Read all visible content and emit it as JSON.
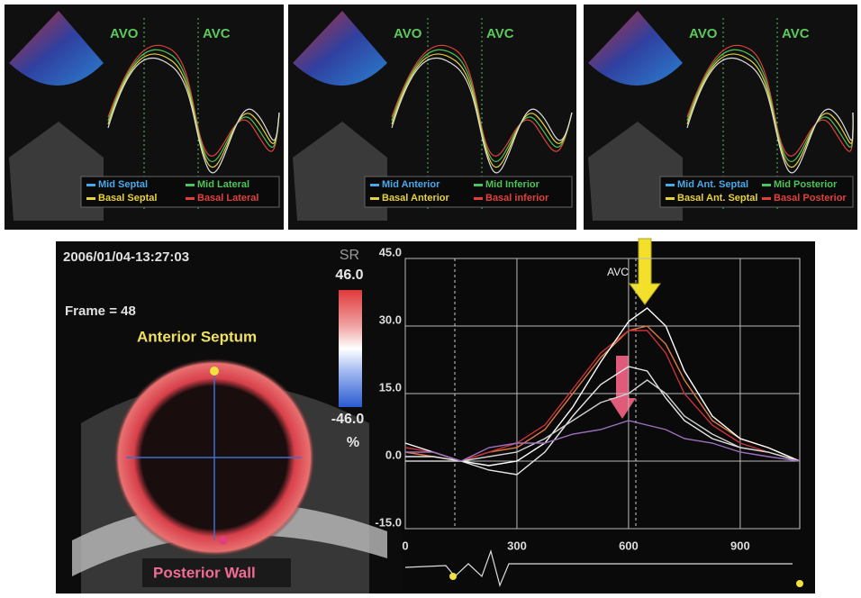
{
  "top_panels": [
    {
      "labels": [
        "AVO",
        "AVC"
      ],
      "legend": [
        "Mid Septal",
        "Mid Lateral",
        "Basal Septal",
        "Basal Lateral"
      ],
      "legend_colors": [
        "#4aa8e8",
        "#4fc25a",
        "#e8d23a",
        "#e0403a"
      ]
    },
    {
      "labels": [
        "AVO",
        "AVC"
      ],
      "legend": [
        "Mid Anterior",
        "Mid Inferior",
        "Basal Anterior",
        "Basal inferior"
      ],
      "legend_colors": [
        "#4aa8e8",
        "#4fc25a",
        "#e8d23a",
        "#e0403a"
      ]
    },
    {
      "labels": [
        "AVO",
        "AVC"
      ],
      "legend": [
        "Mid Ant. Septal",
        "Mid Posterior",
        "Basal Ant. Septal",
        "Basal Posterior"
      ],
      "legend_colors": [
        "#4aa8e8",
        "#4fc25a",
        "#e8d23a",
        "#e0403a"
      ]
    }
  ],
  "bottom": {
    "timestamp": "2006/01/04-13:27:03",
    "frame": "Frame = 48",
    "top_label": "Anterior Septum",
    "bottom_label": "Posterior Wall",
    "scale_title": "SR",
    "scale_max": "46.0",
    "scale_min": "-46.0",
    "scale_unit": "%"
  },
  "chart_data": {
    "type": "line",
    "annotation": "AVC",
    "xlim": [
      0,
      1060
    ],
    "ylim": [
      -15,
      45
    ],
    "xticks": [
      0,
      300,
      600,
      900
    ],
    "yticks": [
      {
        "value": -15,
        "label": "-15.0"
      },
      {
        "value": 0,
        "label": "0.0"
      },
      {
        "value": 15,
        "label": "15.0"
      },
      {
        "value": 30,
        "label": "30.0"
      },
      {
        "value": 45,
        "label": "45.0"
      }
    ],
    "grid": true,
    "x": [
      0,
      75,
      150,
      225,
      300,
      375,
      450,
      525,
      600,
      650,
      700,
      750,
      825,
      900,
      975,
      1060
    ],
    "series": [
      {
        "color": "#e07a3c",
        "values": [
          2,
          1,
          0,
          2,
          3,
          7,
          15,
          23,
          29,
          30,
          26,
          18,
          9,
          5,
          3,
          0
        ]
      },
      {
        "color": "#c8323a",
        "values": [
          3,
          2,
          0,
          2,
          4,
          8,
          16,
          24,
          29,
          29,
          24,
          15,
          8,
          4,
          2,
          0
        ]
      },
      {
        "color": "#ffffff",
        "values": [
          4,
          2,
          0,
          -1,
          0,
          4,
          12,
          22,
          31,
          34,
          30,
          20,
          10,
          5,
          3,
          0
        ]
      },
      {
        "color": "#e6e6e6",
        "values": [
          1,
          1,
          0,
          -2,
          -3,
          2,
          10,
          17,
          21,
          20,
          14,
          9,
          5,
          3,
          2,
          0
        ]
      },
      {
        "color": "#d0d0d0",
        "values": [
          0,
          0,
          0,
          1,
          2,
          5,
          9,
          13,
          15,
          18,
          15,
          10,
          6,
          3,
          2,
          0
        ]
      },
      {
        "color": "#a070c0",
        "values": [
          2,
          2,
          0,
          3,
          4,
          4,
          6,
          7,
          9,
          8,
          7,
          5,
          4,
          2,
          1,
          0
        ]
      }
    ]
  }
}
